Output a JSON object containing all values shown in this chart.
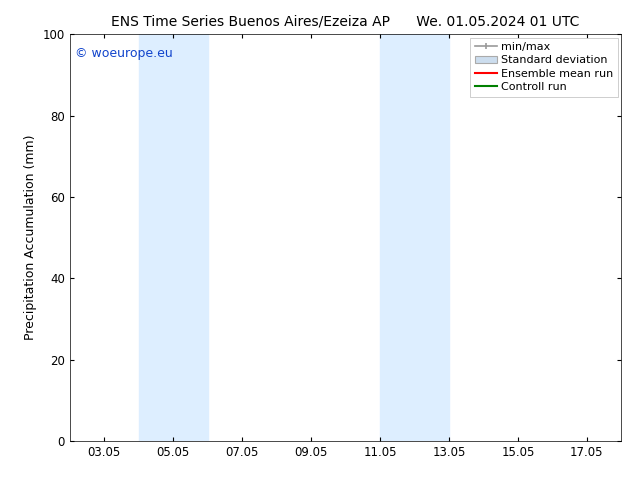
{
  "title_left": "ENS Time Series Buenos Aires/Ezeiza AP",
  "title_right": "We. 01.05.2024 01 UTC",
  "ylabel": "Precipitation Accumulation (mm)",
  "ylim": [
    0,
    100
  ],
  "yticks": [
    0,
    20,
    40,
    60,
    80,
    100
  ],
  "xlim": [
    2.0,
    18.0
  ],
  "xtick_labels": [
    "03.05",
    "05.05",
    "07.05",
    "09.05",
    "11.05",
    "13.05",
    "15.05",
    "17.05"
  ],
  "xtick_positions": [
    3.0,
    5.0,
    7.0,
    9.0,
    11.0,
    13.0,
    15.0,
    17.0
  ],
  "shaded_bands": [
    {
      "x_start": 4.0,
      "x_end": 6.0
    },
    {
      "x_start": 11.0,
      "x_end": 13.0
    }
  ],
  "shade_color": "#ddeeff",
  "watermark_text": "© woeurope.eu",
  "watermark_color": "#1144cc",
  "legend_labels": [
    "min/max",
    "Standard deviation",
    "Ensemble mean run",
    "Controll run"
  ],
  "legend_colors": [
    "#999999",
    "#ccddee",
    "red",
    "green"
  ],
  "bg_color": "white",
  "title_fontsize": 10,
  "tick_fontsize": 8.5,
  "ylabel_fontsize": 9,
  "legend_fontsize": 8,
  "watermark_fontsize": 9
}
